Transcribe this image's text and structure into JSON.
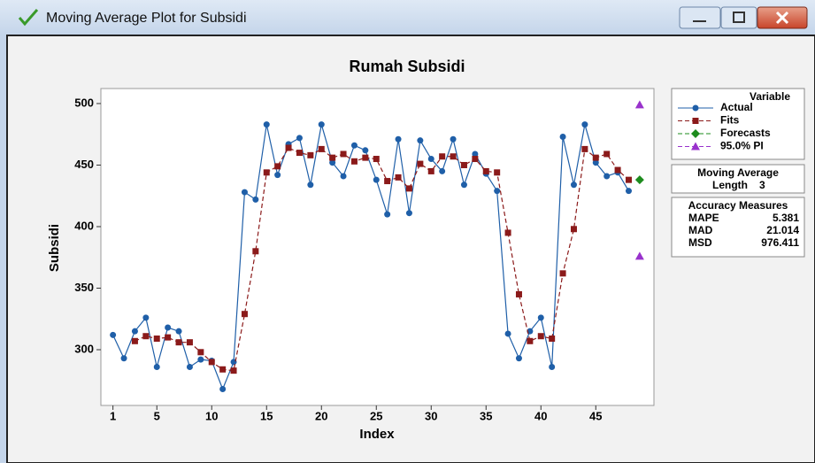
{
  "window": {
    "title": "Moving Average Plot for Subsidi"
  },
  "chart_data": {
    "type": "line",
    "title": "Rumah Subsidi",
    "xlabel": "Index",
    "ylabel": "Subsidi",
    "xlim": [
      -0.1,
      50.3
    ],
    "ylim": [
      254.7,
      512.2
    ],
    "xticks": [
      1,
      5,
      10,
      15,
      20,
      25,
      30,
      35,
      40,
      45
    ],
    "yticks": [
      300,
      350,
      400,
      450,
      500
    ],
    "grid": false,
    "legend": {
      "title": "Variable",
      "position": "right"
    },
    "series": [
      {
        "name": "Actual",
        "color": "#1f5fa8",
        "marker": "circle",
        "dash": false,
        "x": [
          1,
          2,
          3,
          4,
          5,
          6,
          7,
          8,
          9,
          10,
          11,
          12,
          13,
          14,
          15,
          16,
          17,
          18,
          19,
          20,
          21,
          22,
          23,
          24,
          25,
          26,
          27,
          28,
          29,
          30,
          31,
          32,
          33,
          34,
          35,
          36,
          37,
          38,
          39,
          40,
          41,
          42,
          43,
          44,
          45,
          46,
          47,
          48
        ],
        "values": [
          312,
          293,
          315,
          326,
          286,
          318,
          315,
          286,
          292,
          291,
          268,
          290,
          428,
          422,
          483,
          442,
          467,
          472,
          434,
          483,
          452,
          441,
          466,
          462,
          438,
          410,
          471,
          411,
          470,
          455,
          445,
          471,
          434,
          459,
          443,
          429,
          313,
          293,
          315,
          326,
          286,
          473,
          434,
          483,
          452,
          441,
          444,
          429
        ]
      },
      {
        "name": "Fits",
        "color": "#8b1a1a",
        "marker": "square",
        "dash": true,
        "x": [
          3,
          4,
          5,
          6,
          7,
          8,
          9,
          10,
          11,
          12,
          13,
          14,
          15,
          16,
          17,
          18,
          19,
          20,
          21,
          22,
          23,
          24,
          25,
          26,
          27,
          28,
          29,
          30,
          31,
          32,
          33,
          34,
          35,
          36,
          37,
          38,
          39,
          40,
          41,
          42,
          43,
          44,
          45,
          46,
          47,
          48
        ],
        "values": [
          307,
          311,
          309,
          310,
          306,
          306,
          298,
          290,
          284,
          283,
          329,
          380,
          444,
          449,
          464,
          460,
          458,
          463,
          456,
          459,
          453,
          456,
          455,
          437,
          440,
          431,
          451,
          445,
          457,
          457,
          450,
          455,
          445,
          444,
          395,
          345,
          307,
          311,
          309,
          362,
          398,
          463,
          456,
          459,
          446,
          438
        ]
      },
      {
        "name": "Forecasts",
        "color": "#1e8c1e",
        "marker": "diamond",
        "dash": true,
        "x": [
          49
        ],
        "values": [
          438
        ]
      },
      {
        "name": "95.0% PI",
        "color": "#9932cc",
        "marker": "triangle",
        "dash": true,
        "x": [
          49,
          49
        ],
        "values": [
          499,
          376
        ]
      }
    ],
    "method_box": {
      "title": "Moving Average",
      "length_label": "Length",
      "length": 3
    },
    "accuracy": {
      "title": "Accuracy Measures",
      "measures": [
        {
          "name": "MAPE",
          "value": 5.381
        },
        {
          "name": "MAD",
          "value": 21.014
        },
        {
          "name": "MSD",
          "value": 976.411
        }
      ]
    }
  }
}
